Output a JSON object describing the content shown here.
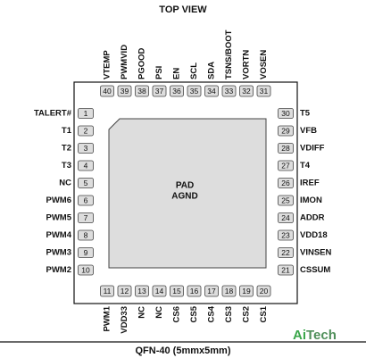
{
  "title": "TOP VIEW",
  "pad": {
    "line1": "PAD",
    "line2": "AGND"
  },
  "package": "QFN-40 (5mmx5mm)",
  "logo": {
    "part1": "Ai",
    "part2": "Tech"
  },
  "pins": {
    "left": [
      {
        "number": "1",
        "label": "TALERT#"
      },
      {
        "number": "2",
        "label": "T1"
      },
      {
        "number": "3",
        "label": "T2"
      },
      {
        "number": "4",
        "label": "T3"
      },
      {
        "number": "5",
        "label": "NC"
      },
      {
        "number": "6",
        "label": "PWM6"
      },
      {
        "number": "7",
        "label": "PWM5"
      },
      {
        "number": "8",
        "label": "PWM4"
      },
      {
        "number": "9",
        "label": "PWM3"
      },
      {
        "number": "10",
        "label": "PWM2"
      }
    ],
    "bottom": [
      {
        "number": "11",
        "label": "PWM1"
      },
      {
        "number": "12",
        "label": "VDD33"
      },
      {
        "number": "13",
        "label": "NC"
      },
      {
        "number": "14",
        "label": "NC"
      },
      {
        "number": "15",
        "label": "CS6"
      },
      {
        "number": "16",
        "label": "CS5"
      },
      {
        "number": "17",
        "label": "CS4"
      },
      {
        "number": "18",
        "label": "CS3"
      },
      {
        "number": "19",
        "label": "CS2"
      },
      {
        "number": "20",
        "label": "CS1"
      }
    ],
    "right": [
      {
        "number": "30",
        "label": "T5"
      },
      {
        "number": "29",
        "label": "VFB"
      },
      {
        "number": "28",
        "label": "VDIFF"
      },
      {
        "number": "27",
        "label": "T4"
      },
      {
        "number": "26",
        "label": "IREF"
      },
      {
        "number": "25",
        "label": "IMON"
      },
      {
        "number": "24",
        "label": "ADDR"
      },
      {
        "number": "23",
        "label": "VDD18"
      },
      {
        "number": "22",
        "label": "VINSEN"
      },
      {
        "number": "21",
        "label": "CSSUM"
      }
    ],
    "top": [
      {
        "number": "40",
        "label": "VTEMP"
      },
      {
        "number": "39",
        "label": "PWMVID"
      },
      {
        "number": "38",
        "label": "PGOOD"
      },
      {
        "number": "37",
        "label": "PSI"
      },
      {
        "number": "36",
        "label": "EN"
      },
      {
        "number": "35",
        "label": "SCL"
      },
      {
        "number": "34",
        "label": "SDA"
      },
      {
        "number": "33",
        "label": "TSNS/BOOT"
      },
      {
        "number": "32",
        "label": "VORTN"
      },
      {
        "number": "31",
        "label": "VOSEN"
      }
    ]
  }
}
